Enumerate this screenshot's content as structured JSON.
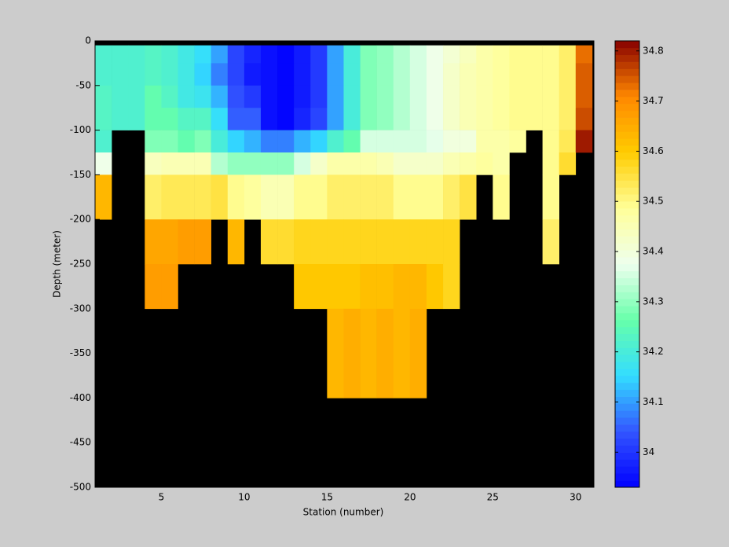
{
  "chart_data": {
    "type": "heatmap",
    "xlabel": "Station (number)",
    "ylabel": "Depth (meter)",
    "x": [
      1,
      2,
      3,
      4,
      5,
      6,
      7,
      8,
      9,
      10,
      11,
      12,
      13,
      14,
      15,
      16,
      17,
      18,
      19,
      20,
      21,
      22,
      23,
      24,
      25,
      26,
      27,
      28,
      29,
      30,
      31
    ],
    "y": [
      -5,
      -25,
      -50,
      -75,
      -100,
      -125,
      -150,
      -200,
      -250,
      -300,
      -400,
      -500
    ],
    "values": [
      [
        34.22,
        34.22,
        34.22,
        34.23,
        34.22,
        34.19,
        34.16,
        34.1,
        34.02,
        33.98,
        33.95,
        33.94,
        33.97,
        34.0,
        34.1,
        34.2,
        34.28,
        34.3,
        34.32,
        34.35,
        34.38,
        34.41,
        34.44,
        34.46,
        34.48,
        34.49,
        34.5,
        34.5,
        34.52,
        34.73
      ],
      [
        34.22,
        34.22,
        34.22,
        34.23,
        34.22,
        34.19,
        34.14,
        34.08,
        34.02,
        33.97,
        33.95,
        33.94,
        33.97,
        34.0,
        34.1,
        34.2,
        34.28,
        34.3,
        34.32,
        34.35,
        34.38,
        34.42,
        34.45,
        34.46,
        34.48,
        34.49,
        34.5,
        34.5,
        34.52,
        34.74
      ],
      [
        34.23,
        34.22,
        34.22,
        34.25,
        34.23,
        34.19,
        34.18,
        34.12,
        34.03,
        34.0,
        33.95,
        33.94,
        33.97,
        34.01,
        34.1,
        34.2,
        34.28,
        34.3,
        34.32,
        34.35,
        34.38,
        34.42,
        34.45,
        34.46,
        34.48,
        34.49,
        34.5,
        34.5,
        34.52,
        34.74
      ],
      [
        34.23,
        34.22,
        34.22,
        34.25,
        34.26,
        34.23,
        34.23,
        34.16,
        34.05,
        34.05,
        33.95,
        33.94,
        33.98,
        34.02,
        34.1,
        34.2,
        34.28,
        34.3,
        34.32,
        34.35,
        34.38,
        34.42,
        34.45,
        34.46,
        34.48,
        34.49,
        34.5,
        34.5,
        34.52,
        34.76
      ],
      [
        34.22,
        null,
        null,
        34.28,
        34.28,
        34.25,
        34.28,
        34.2,
        34.15,
        34.12,
        34.08,
        34.08,
        34.12,
        34.15,
        34.22,
        34.26,
        34.35,
        34.35,
        34.36,
        34.36,
        34.37,
        34.4,
        34.4,
        34.46,
        34.47,
        34.48,
        null,
        34.5,
        34.53,
        34.8
      ],
      [
        34.38,
        null,
        null,
        34.44,
        34.45,
        34.45,
        34.45,
        34.33,
        34.3,
        34.3,
        34.3,
        34.3,
        34.35,
        34.42,
        34.47,
        34.46,
        34.47,
        34.45,
        34.42,
        34.42,
        34.43,
        34.45,
        34.47,
        34.48,
        34.47,
        null,
        null,
        34.5,
        34.56,
        null
      ],
      [
        34.63,
        null,
        null,
        34.52,
        34.53,
        34.54,
        34.54,
        34.55,
        34.5,
        34.48,
        34.45,
        34.45,
        34.5,
        34.5,
        34.52,
        34.52,
        34.52,
        34.52,
        34.5,
        34.5,
        34.5,
        34.52,
        34.55,
        null,
        34.5,
        null,
        null,
        34.5,
        null,
        null
      ],
      [
        null,
        null,
        null,
        34.66,
        34.66,
        34.68,
        34.68,
        null,
        34.63,
        null,
        34.56,
        34.56,
        34.57,
        34.57,
        34.58,
        34.58,
        34.58,
        34.58,
        34.57,
        34.57,
        34.58,
        34.58,
        null,
        null,
        null,
        null,
        null,
        34.52,
        null,
        null
      ],
      [
        null,
        null,
        null,
        34.68,
        34.68,
        null,
        null,
        null,
        null,
        null,
        null,
        null,
        34.6,
        34.6,
        34.6,
        34.61,
        34.62,
        34.62,
        34.63,
        34.63,
        34.6,
        34.58,
        null,
        null,
        null,
        null,
        null,
        null,
        null,
        null
      ],
      [
        null,
        null,
        null,
        null,
        null,
        null,
        null,
        null,
        null,
        null,
        null,
        null,
        null,
        null,
        34.63,
        34.65,
        34.63,
        34.64,
        34.63,
        34.65,
        null,
        null,
        null,
        null,
        null,
        null,
        null,
        null,
        null,
        null
      ],
      [
        null,
        null,
        null,
        null,
        null,
        null,
        null,
        null,
        null,
        null,
        null,
        null,
        null,
        null,
        null,
        null,
        null,
        null,
        null,
        null,
        null,
        null,
        null,
        null,
        null,
        null,
        null,
        null,
        null,
        null
      ]
    ],
    "xlim": [
      1,
      31.1
    ],
    "ylim": [
      -500,
      0
    ],
    "xticks": [
      5,
      10,
      15,
      20,
      25,
      30
    ],
    "yticks": [
      0,
      -50,
      -100,
      -150,
      -200,
      -250,
      -300,
      -350,
      -400,
      -450,
      -500
    ],
    "clim": [
      33.93,
      34.82
    ],
    "cticks": [
      34,
      34.1,
      34.2,
      34.3,
      34.4,
      34.5,
      34.6,
      34.7,
      34.8
    ],
    "colormap": [
      "#0000ff",
      "#3355ff",
      "#33ddff",
      "#66ffaa",
      "#eeffee",
      "#ffff99",
      "#ffcc00",
      "#ff8800",
      "#880000"
    ],
    "background_color": "#000000"
  }
}
